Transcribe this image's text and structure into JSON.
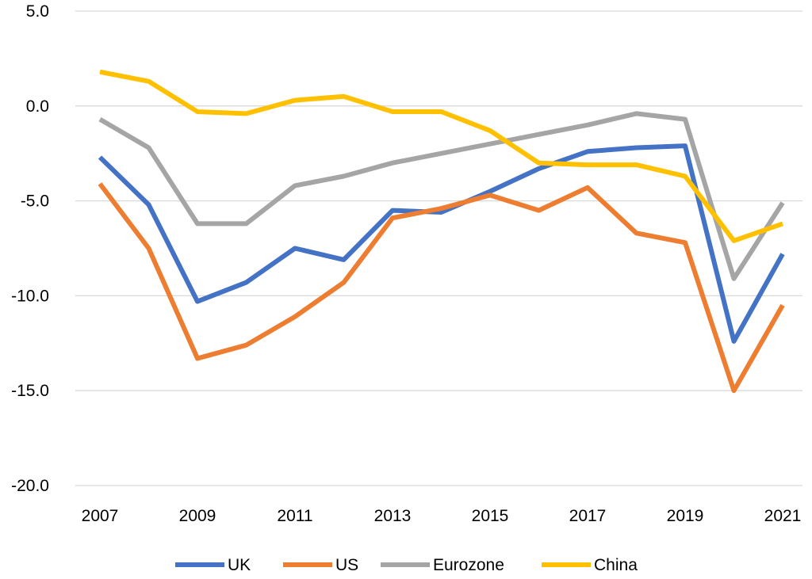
{
  "chart_data": {
    "type": "line",
    "title": "",
    "xlabel": "",
    "ylabel": "",
    "x": [
      2007,
      2008,
      2009,
      2010,
      2011,
      2012,
      2013,
      2014,
      2015,
      2016,
      2017,
      2018,
      2019,
      2020,
      2021
    ],
    "xticks": [
      "2007",
      "2009",
      "2011",
      "2013",
      "2015",
      "2017",
      "2019",
      "2021"
    ],
    "ylim": [
      -20,
      5
    ],
    "yticks": [
      "5.0",
      "0.0",
      "-5.0",
      "-10.0",
      "-15.0",
      "-20.0"
    ],
    "grid": "horizontal",
    "legend_position": "bottom",
    "series": [
      {
        "name": "UK",
        "color": "#4472C4",
        "values": [
          -2.7,
          -5.2,
          -10.3,
          -9.3,
          -7.5,
          -8.1,
          -5.5,
          -5.6,
          -4.5,
          -3.3,
          -2.4,
          -2.2,
          -2.1,
          -12.4,
          -7.8
        ]
      },
      {
        "name": "US",
        "color": "#ED7D31",
        "values": [
          -4.1,
          -7.5,
          -13.3,
          -12.6,
          -11.1,
          -9.3,
          -5.9,
          -5.4,
          -4.7,
          -5.5,
          -4.3,
          -6.7,
          -7.2,
          -15.0,
          -10.5
        ]
      },
      {
        "name": "Eurozone",
        "color": "#A5A5A5",
        "values": [
          -0.7,
          -2.2,
          -6.2,
          -6.2,
          -4.2,
          -3.7,
          -3.0,
          -2.5,
          -2.0,
          -1.5,
          -1.0,
          -0.4,
          -0.7,
          -9.1,
          -5.1
        ]
      },
      {
        "name": "China",
        "color": "#FFC000",
        "values": [
          1.8,
          1.3,
          -0.3,
          -0.4,
          0.3,
          0.5,
          -0.3,
          -0.3,
          -1.3,
          -3.0,
          -3.1,
          -3.1,
          -3.7,
          -7.1,
          -6.2
        ]
      }
    ]
  }
}
